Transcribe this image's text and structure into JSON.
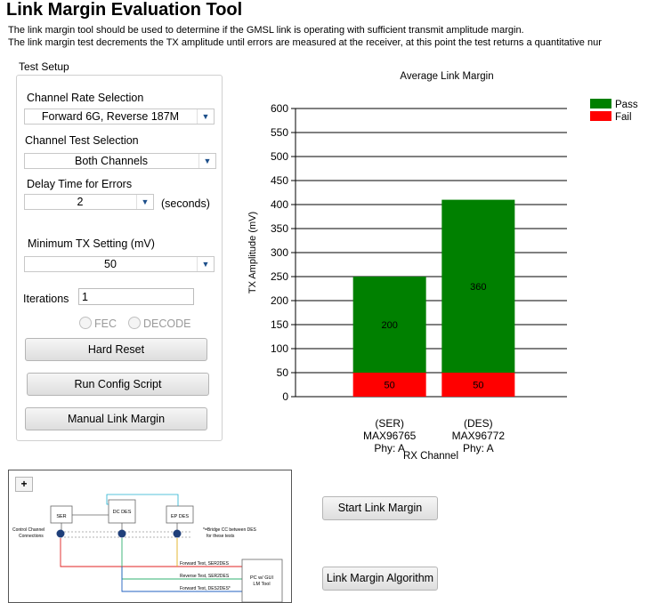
{
  "header": {
    "title": "Link Margin Evaluation Tool",
    "desc1": "The link margin tool should be used to determine if the GMSL link is operating with sufficient transmit amplitude margin.",
    "desc2": "The link margin test decrements the TX amplitude until errors are measured at the receiver, at this point the test returns a quantitative nur"
  },
  "setup": {
    "group_label": "Test Setup",
    "channel_rate_label": "Channel Rate Selection",
    "channel_rate_value": "Forward 6G, Reverse 187M",
    "channel_test_label": "Channel Test Selection",
    "channel_test_value": "Both Channels",
    "delay_label": "Delay Time for Errors",
    "delay_value": "2",
    "delay_unit": "(seconds)",
    "min_tx_label": "Minimum TX Setting (mV)",
    "min_tx_value": "50",
    "iterations_label": "Iterations",
    "iterations_value": "1",
    "fec_label": "FEC",
    "decode_label": "DECODE",
    "hard_reset": "Hard Reset",
    "run_config": "Run Config Script",
    "manual_margin": "Manual Link Margin"
  },
  "actions": {
    "start": "Start Link Margin",
    "algorithm": "Link Margin Algorithm"
  },
  "diagram": {
    "expand": "+",
    "ser": "SER",
    "dc_des": "DC DES",
    "ep_des": "EP DES",
    "ctrl_channel_1": "Control Channel",
    "ctrl_channel_2": "Connections",
    "bridge_1": "*=Bridge CC between DES",
    "bridge_2": "for these tests",
    "fwd_ser2des": "Forward Test, SER2DES",
    "rev_ser2des": "Reverse Test, SER2DES",
    "fwd_des2des": "Forward Test, DES2DES*",
    "pc_1": "PC w/ GUI",
    "pc_2": "LM Tool"
  },
  "chart_data": {
    "type": "bar",
    "stacked": true,
    "title": "Average Link Margin",
    "xlabel": "RX Channel",
    "ylabel": "TX Amplitude (mV)",
    "ylim": [
      0,
      600
    ],
    "yticks": [
      0,
      50,
      100,
      150,
      200,
      250,
      300,
      350,
      400,
      450,
      500,
      550,
      600
    ],
    "categories": [
      [
        "(SER)",
        "MAX96765",
        "Phy: A"
      ],
      [
        "(DES)",
        "MAX96772",
        "Phy: A"
      ]
    ],
    "series": [
      {
        "name": "Fail",
        "color": "#ff0000",
        "values": [
          50,
          50
        ]
      },
      {
        "name": "Pass",
        "color": "#008000",
        "values": [
          200,
          360
        ]
      }
    ],
    "legend": [
      "Pass",
      "Fail"
    ],
    "legend_position": "top-right"
  }
}
